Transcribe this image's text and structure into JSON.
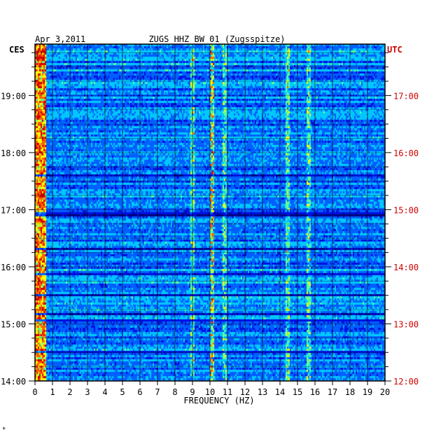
{
  "chart_data": {
    "type": "heatmap",
    "title": "ZUGS HHZ BW 01 (Zugsspitze)",
    "date": "Apr 3,2011",
    "xlabel": "FREQUENCY (HZ)",
    "x_ticks": [
      "0",
      "1",
      "2",
      "3",
      "4",
      "5",
      "6",
      "7",
      "8",
      "9",
      "10",
      "11",
      "12",
      "13",
      "14",
      "15",
      "16",
      "17",
      "18",
      "19",
      "20"
    ],
    "xlim": [
      0,
      20
    ],
    "left_axis_label": "CES",
    "right_axis_label": "UTC",
    "left_ticks": [
      "19:00",
      "18:00",
      "17:00",
      "16:00",
      "15:00",
      "14:00"
    ],
    "right_ticks": [
      "17:00",
      "16:00",
      "15:00",
      "14:00",
      "13:00",
      "12:00"
    ],
    "left_tick_hours": [
      19,
      18,
      17,
      16,
      15,
      14
    ],
    "left_time_range_hours": [
      14.0,
      19.9
    ],
    "colormap": [
      "#000080",
      "#0010e0",
      "#0060ff",
      "#00c8ff",
      "#60ff90",
      "#ffff00",
      "#ff6000",
      "#d00000"
    ],
    "grid": true,
    "features": [
      {
        "name": "low-frequency energy",
        "freq_range_hz": [
          0.0,
          0.6
        ],
        "level": "high"
      },
      {
        "name": "spectral line",
        "freq_hz": 9.0,
        "level": "medium"
      },
      {
        "name": "spectral line",
        "freq_hz": 10.1,
        "level": "high"
      },
      {
        "name": "spectral line",
        "freq_hz": 10.8,
        "level": "medium"
      },
      {
        "name": "spectral line",
        "freq_hz": 14.4,
        "level": "medium"
      },
      {
        "name": "spectral line",
        "freq_hz": 15.6,
        "level": "medium"
      }
    ]
  },
  "corner_mark": "*",
  "colors": {
    "axis": "#000000",
    "utc": "#cc0000",
    "grid": "#000000"
  }
}
